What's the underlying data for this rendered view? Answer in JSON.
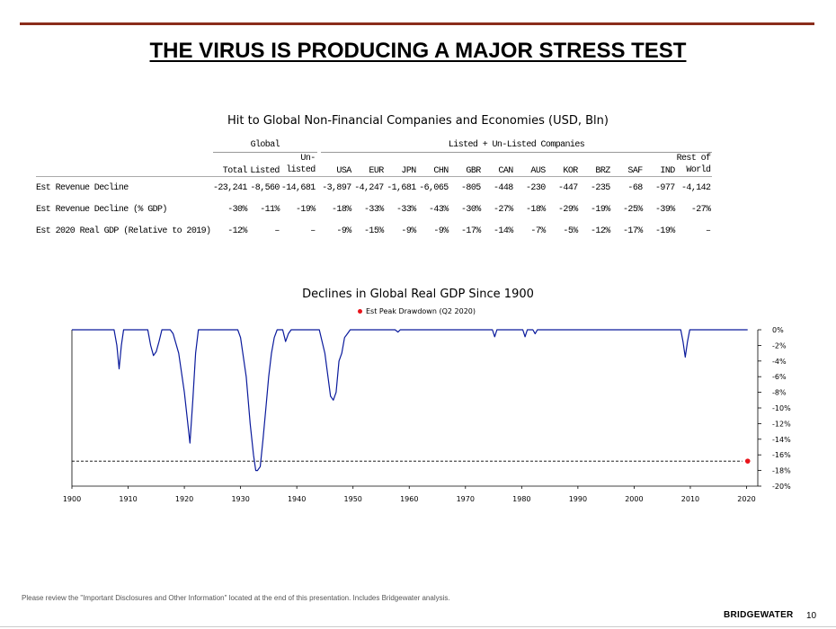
{
  "slide_title": "THE VIRUS IS PRODUCING A MAJOR STRESS TEST",
  "table": {
    "title": "Hit to Global Non-Financial Companies and Economies (USD, Bln)",
    "group_global": "Global",
    "group_companies": "Listed + Un-Listed Companies",
    "headers": {
      "total": "Total",
      "listed": "Listed",
      "unlisted_1": "Un-",
      "unlisted_2": "listed",
      "usa": "USA",
      "eur": "EUR",
      "jpn": "JPN",
      "chn": "CHN",
      "gbr": "GBR",
      "can": "CAN",
      "aus": "AUS",
      "kor": "KOR",
      "brz": "BRZ",
      "saf": "SAF",
      "ind": "IND",
      "rest_1": "Rest of",
      "rest_2": "World"
    },
    "rows": [
      {
        "label": "Est Revenue Decline",
        "cells": [
          "-23,241",
          "-8,560",
          "-14,681",
          "-3,897",
          "-4,247",
          "-1,681",
          "-6,065",
          "-805",
          "-448",
          "-230",
          "-447",
          "-235",
          "-68",
          "-977",
          "-4,142"
        ]
      },
      {
        "label": "Est Revenue Decline (% GDP)",
        "cells": [
          "-30%",
          "-11%",
          "-19%",
          "-18%",
          "-33%",
          "-33%",
          "-43%",
          "-30%",
          "-27%",
          "-18%",
          "-29%",
          "-19%",
          "-25%",
          "-39%",
          "-27%"
        ]
      },
      {
        "label": "Est 2020 Real GDP (Relative to 2019)",
        "cells": [
          "-12%",
          "–",
          "–",
          "-9%",
          "-15%",
          "-9%",
          "-9%",
          "-17%",
          "-14%",
          "-7%",
          "-5%",
          "-12%",
          "-17%",
          "-19%",
          "–"
        ]
      }
    ]
  },
  "chart_data": {
    "type": "line",
    "title": "Declines in Global Real GDP Since 1900",
    "legend": "Est Peak Drawdown (Q2 2020)",
    "legend_position": "top-center",
    "xlim": [
      1900,
      2022
    ],
    "ylim": [
      -20,
      0
    ],
    "x_ticks": [
      "1900",
      "1910",
      "1920",
      "1930",
      "1940",
      "1950",
      "1960",
      "1970",
      "1980",
      "1990",
      "2000",
      "2010",
      "2020"
    ],
    "y_ticks": [
      "0%",
      "-2%",
      "-4%",
      "-6%",
      "-8%",
      "-10%",
      "-12%",
      "-14%",
      "-16%",
      "-18%",
      "-20%"
    ],
    "grid": false,
    "series": [
      {
        "color": "#0a1a9c",
        "points": [
          [
            1900,
            0
          ],
          [
            1907.5,
            0
          ],
          [
            1908,
            -2
          ],
          [
            1908.4,
            -5
          ],
          [
            1908.8,
            -2
          ],
          [
            1909.2,
            0
          ],
          [
            1913.5,
            0
          ],
          [
            1914,
            -2
          ],
          [
            1914.5,
            -3.3
          ],
          [
            1915,
            -2.8
          ],
          [
            1915.5,
            -1.5
          ],
          [
            1916,
            0
          ],
          [
            1917.5,
            0
          ],
          [
            1918,
            -0.5
          ],
          [
            1919,
            -3
          ],
          [
            1920,
            -8
          ],
          [
            1921,
            -14.5
          ],
          [
            1921.5,
            -9
          ],
          [
            1922,
            -3
          ],
          [
            1922.5,
            0
          ],
          [
            1929.5,
            0
          ],
          [
            1930,
            -1
          ],
          [
            1931,
            -6
          ],
          [
            1931.7,
            -12
          ],
          [
            1932.3,
            -16
          ],
          [
            1932.7,
            -18
          ],
          [
            1933,
            -18
          ],
          [
            1933.5,
            -17.5
          ],
          [
            1934,
            -14
          ],
          [
            1934.5,
            -10
          ],
          [
            1935,
            -6
          ],
          [
            1935.5,
            -3
          ],
          [
            1936,
            -1
          ],
          [
            1936.5,
            0
          ],
          [
            1937.5,
            0
          ],
          [
            1938,
            -1.5
          ],
          [
            1938.5,
            -0.5
          ],
          [
            1939,
            0
          ],
          [
            1944,
            0
          ],
          [
            1945,
            -3
          ],
          [
            1946,
            -8.5
          ],
          [
            1946.5,
            -9
          ],
          [
            1947,
            -8
          ],
          [
            1947.5,
            -4
          ],
          [
            1948,
            -3
          ],
          [
            1948.5,
            -1
          ],
          [
            1949,
            -0.5
          ],
          [
            1949.5,
            0
          ],
          [
            1957.5,
            0
          ],
          [
            1958,
            -0.3
          ],
          [
            1958.4,
            0
          ],
          [
            1974.8,
            0
          ],
          [
            1975.2,
            -0.9
          ],
          [
            1975.6,
            0
          ],
          [
            1980.2,
            0
          ],
          [
            1980.6,
            -0.9
          ],
          [
            1981,
            0
          ],
          [
            1982,
            0
          ],
          [
            1982.4,
            -0.5
          ],
          [
            1982.8,
            0
          ],
          [
            2008.3,
            0
          ],
          [
            2008.7,
            -1.5
          ],
          [
            2009.1,
            -3.5
          ],
          [
            2009.5,
            -1.5
          ],
          [
            2009.9,
            0
          ],
          [
            2020.2,
            0
          ]
        ]
      }
    ],
    "reference": {
      "label": "Est Peak Drawdown (Q2 2020)",
      "x": 2020.2,
      "y": -16.8,
      "color": "#e8141b"
    }
  },
  "footnote": "Please review the \"Important Disclosures and Other Information\" located at the end of this presentation. Includes Bridgewater analysis.",
  "brand": "BRIDGEWATER",
  "page_number": "10"
}
